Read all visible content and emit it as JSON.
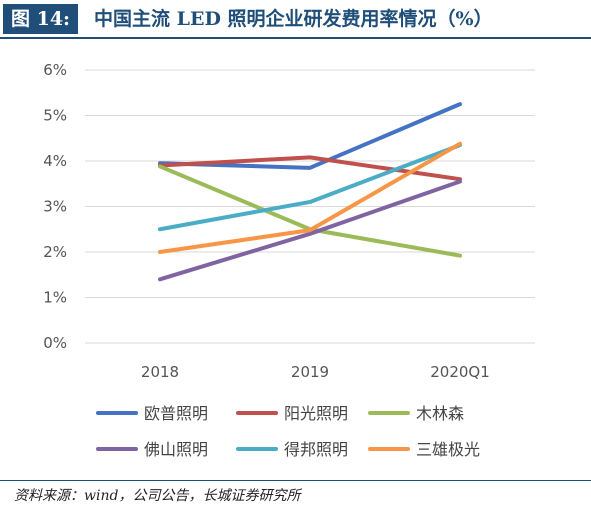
{
  "header": {
    "figure_label": "图 14:",
    "title": "中国主流 LED 照明企业研发费用率情况（%）"
  },
  "footer": {
    "source": "资料来源：wind，公司公告，长城证券研究所"
  },
  "chart_data": {
    "type": "line",
    "x": [
      "2018",
      "2019",
      "2020Q1"
    ],
    "ylim": [
      0,
      6
    ],
    "y_ticks": [
      "0%",
      "1%",
      "2%",
      "3%",
      "4%",
      "5%",
      "6%"
    ],
    "grid": "horizontal",
    "legend_position": "bottom",
    "series": [
      {
        "name": "欧普照明",
        "color": "#4472c4",
        "values": [
          3.95,
          3.85,
          5.25
        ]
      },
      {
        "name": "阳光照明",
        "color": "#c0504d",
        "values": [
          3.9,
          4.08,
          3.6
        ]
      },
      {
        "name": "木林森",
        "color": "#9bbb59",
        "values": [
          3.88,
          2.5,
          1.92
        ]
      },
      {
        "name": "佛山照明",
        "color": "#8064a2",
        "values": [
          1.4,
          2.4,
          3.55
        ]
      },
      {
        "name": "得邦照明",
        "color": "#4bacc6",
        "values": [
          2.5,
          3.1,
          4.35
        ]
      },
      {
        "name": "三雄极光",
        "color": "#f79646",
        "values": [
          2.0,
          2.48,
          4.38
        ]
      }
    ]
  }
}
